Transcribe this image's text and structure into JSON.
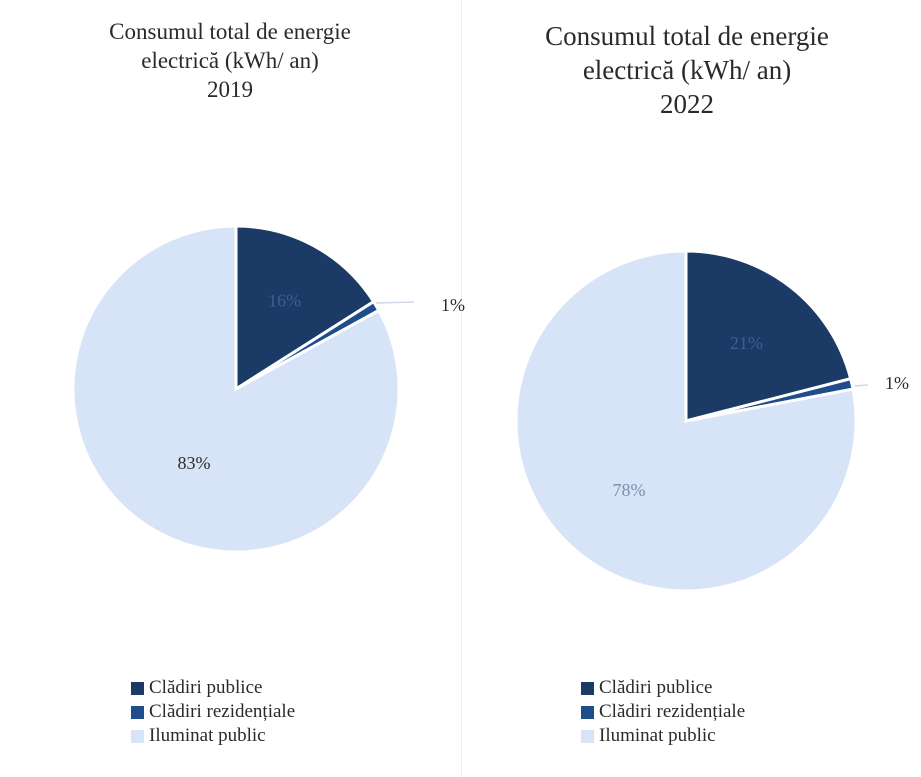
{
  "chart_data": [
    {
      "type": "pie",
      "title": [
        "Consumul total de energie",
        "electrică (kWh/ an)",
        "2019"
      ],
      "categories": [
        "Clădiri publice",
        "Clădiri rezidențiale",
        "Iluminat public"
      ],
      "values": [
        16,
        1,
        83
      ],
      "data_labels": [
        "16%",
        "1%",
        "83%"
      ],
      "colors": [
        "#1b3a66",
        "#1f4d8c",
        "#d7e3f6"
      ],
      "legend_position": "bottom"
    },
    {
      "type": "pie",
      "title": [
        "Consumul total de energie",
        "electrică (kWh/ an)",
        "2022"
      ],
      "categories": [
        "Clădiri publice",
        "Clădiri rezidențiale",
        "Iluminat public"
      ],
      "values": [
        21,
        1,
        78
      ],
      "data_labels": [
        "21%",
        "1%",
        "78%"
      ],
      "colors": [
        "#1b3a66",
        "#1f4d8c",
        "#d7e3f6"
      ],
      "legend_position": "bottom"
    }
  ]
}
